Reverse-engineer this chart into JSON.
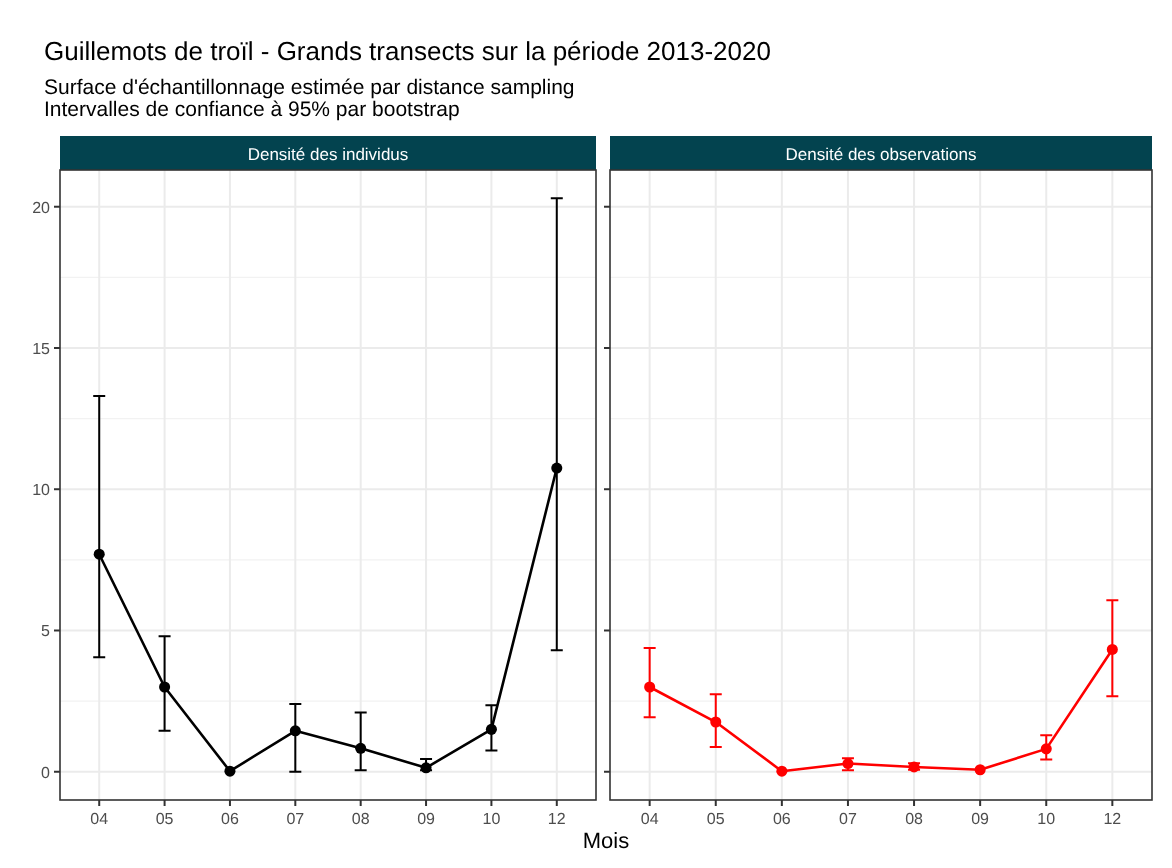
{
  "chart_data": [
    {
      "type": "line",
      "title": "Densité des individus",
      "annotations": [
        "Guillemots de troïl - Grands transects sur la période 2013-2020",
        "Surface d'échantillonnage estimée par distance sampling",
        "Intervalles de confiance à 95% par bootstrap"
      ],
      "xlabel": "Mois",
      "categories": [
        "04",
        "05",
        "06",
        "07",
        "08",
        "09",
        "10",
        "12"
      ],
      "series": [
        {
          "color": "#000000",
          "values": [
            7.7,
            3.0,
            0.02,
            1.45,
            0.83,
            0.14,
            1.5,
            10.75
          ],
          "errors": [
            [
              4.05,
              13.3
            ],
            [
              1.45,
              4.8
            ],
            null,
            [
              0.0,
              2.4
            ],
            [
              0.05,
              2.1
            ],
            [
              0.05,
              0.45
            ],
            [
              0.75,
              2.35
            ],
            [
              4.3,
              20.3
            ]
          ]
        }
      ],
      "ylim": [
        -1,
        21.3
      ],
      "yticks": [
        0,
        5,
        10,
        15,
        20
      ],
      "grid": true,
      "marker": "circle"
    },
    {
      "type": "line",
      "title": "Densité des observations",
      "categories": [
        "04",
        "05",
        "06",
        "07",
        "08",
        "09",
        "10",
        "12"
      ],
      "series": [
        {
          "color": "#ff0000",
          "values": [
            3.0,
            1.76,
            0.02,
            0.29,
            0.17,
            0.07,
            0.81,
            4.33
          ],
          "errors": [
            [
              1.93,
              4.38
            ],
            [
              0.88,
              2.74
            ],
            null,
            [
              0.05,
              0.48
            ],
            [
              0.07,
              0.3
            ],
            null,
            [
              0.43,
              1.29
            ],
            [
              2.67,
              6.07
            ]
          ]
        }
      ],
      "ylim": [
        -1,
        21.3
      ],
      "yticks": [
        0,
        5,
        10,
        15,
        20
      ],
      "grid": true,
      "marker": "circle",
      "tick_labels": "x"
    }
  ]
}
